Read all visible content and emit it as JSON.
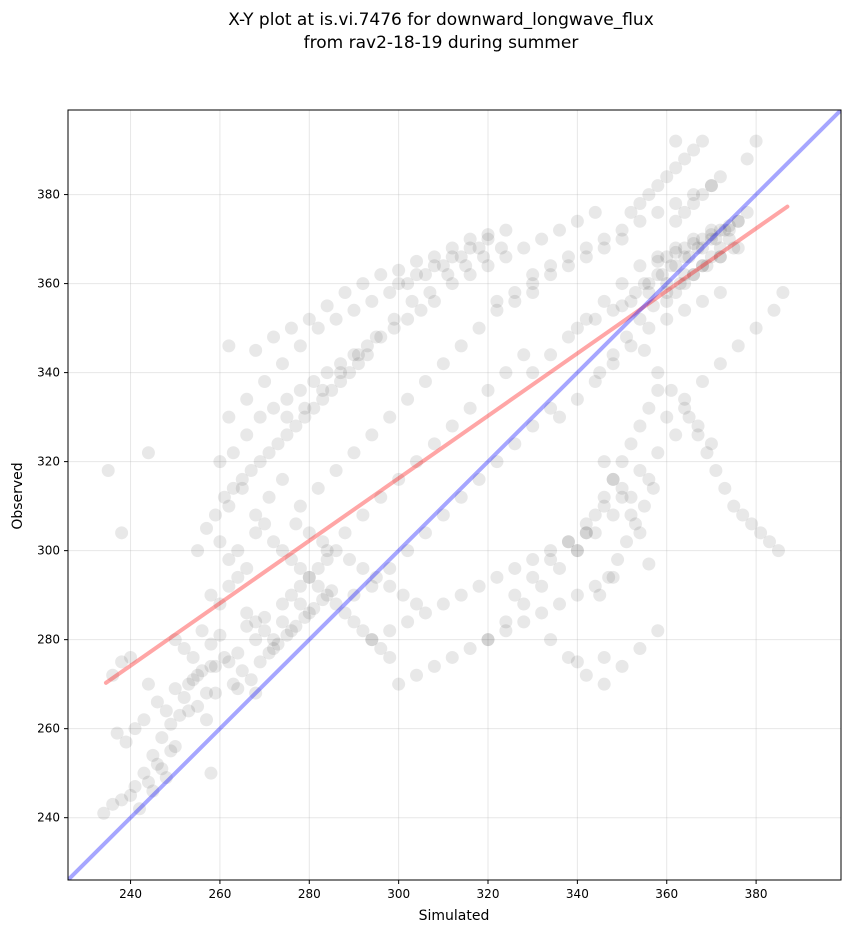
{
  "chart_data": {
    "type": "scatter",
    "title": "X-Y plot at is.vi.7476 for downward_longwave_flux",
    "subtitle": "from rav2-18-19 during summer",
    "xlabel": "Simulated",
    "ylabel": "Observed",
    "xlim": [
      226,
      399
    ],
    "ylim": [
      226,
      399
    ],
    "xticks": [
      240,
      260,
      280,
      300,
      320,
      340,
      360,
      380
    ],
    "yticks": [
      240,
      260,
      280,
      300,
      320,
      340,
      360,
      380
    ],
    "grid": true,
    "colors": {
      "points": "#000000",
      "regression_line": "#ff0000",
      "identity_line": "#0000ff"
    },
    "series": [
      {
        "x": [
          234,
          236,
          238,
          240,
          241,
          242,
          243,
          244,
          245,
          246,
          247,
          248,
          249,
          250,
          237,
          239,
          241,
          243,
          245,
          247,
          249,
          251,
          253,
          255,
          257,
          259,
          236,
          238,
          240,
          244,
          246,
          248,
          250,
          252,
          254,
          256,
          258,
          250,
          252,
          254,
          256,
          258,
          260,
          262,
          264,
          266,
          268,
          270,
          272,
          274,
          276,
          278,
          280,
          253,
          255,
          257,
          259,
          261,
          263,
          265,
          267,
          269,
          271,
          273,
          275,
          277,
          279,
          281,
          283,
          285,
          258,
          260,
          262,
          264,
          266,
          268,
          270,
          272,
          274,
          276,
          278,
          280,
          282,
          284,
          260,
          262,
          264,
          266,
          268,
          270,
          272,
          274,
          276,
          278,
          280,
          282,
          284,
          286,
          288,
          290,
          292,
          294,
          296,
          298,
          262,
          265,
          268,
          271,
          274,
          277,
          280,
          283,
          286,
          289,
          292,
          295,
          298,
          301,
          304,
          255,
          257,
          259,
          261,
          263,
          265,
          267,
          269,
          271,
          273,
          275,
          277,
          279,
          281,
          283,
          285,
          287,
          289,
          291,
          293,
          260,
          263,
          266,
          269,
          272,
          275,
          278,
          281,
          284,
          287,
          290,
          293,
          296,
          299,
          302,
          305,
          308,
          262,
          266,
          270,
          274,
          278,
          282,
          286,
          290,
          294,
          298,
          302,
          306,
          310,
          314,
          318,
          268,
          272,
          276,
          280,
          284,
          288,
          292,
          296,
          300,
          304,
          308,
          312,
          316,
          320,
          275,
          279,
          283,
          287,
          291,
          295,
          299,
          303,
          307,
          311,
          315,
          319,
          323,
          278,
          282,
          286,
          290,
          294,
          298,
          302,
          306,
          310,
          314,
          318,
          322,
          326,
          330,
          284,
          288,
          292,
          296,
          300,
          304,
          308,
          312,
          316,
          320,
          324,
          328,
          290,
          294,
          298,
          302,
          306,
          310,
          314,
          318,
          322,
          326,
          330,
          334,
          294,
          298,
          302,
          306,
          310,
          314,
          318,
          322,
          326,
          330,
          334,
          338,
          342,
          300,
          304,
          308,
          312,
          316,
          320,
          324,
          328,
          332,
          336,
          340,
          344,
          348,
          320,
          324,
          328,
          332,
          336,
          340,
          344,
          348,
          352,
          356,
          326,
          330,
          334,
          338,
          342,
          346,
          350,
          354,
          358,
          362,
          330,
          334,
          338,
          342,
          346,
          350,
          354,
          358,
          362,
          366,
          370,
          336,
          340,
          344,
          348,
          352,
          356,
          360,
          364,
          368,
          372,
          340,
          344,
          348,
          352,
          356,
          360,
          364,
          368,
          372,
          376,
          345,
          348,
          351,
          354,
          357,
          360,
          363,
          366,
          369,
          372,
          375,
          350,
          353,
          356,
          359,
          362,
          365,
          368,
          371,
          374,
          355,
          358,
          361,
          364,
          367,
          370,
          373,
          376,
          358,
          360,
          362,
          364,
          366,
          368,
          370,
          372,
          374,
          376,
          378,
          360,
          362,
          364,
          366,
          368,
          370,
          372,
          374,
          362,
          364,
          366,
          368,
          370,
          372,
          340,
          342,
          344,
          346,
          348,
          350,
          352,
          354,
          356,
          358,
          345,
          347,
          349,
          351,
          353,
          355,
          357,
          330,
          334,
          338,
          342,
          346,
          350,
          354,
          358,
          362,
          366,
          370,
          322,
          326,
          330,
          334,
          338,
          342,
          346,
          350,
          312,
          316,
          320,
          324,
          328,
          332,
          336,
          340,
          344,
          300,
          304,
          308,
          312,
          316,
          320,
          324,
          365,
          367,
          369,
          371,
          373,
          375,
          377,
          379,
          381,
          383,
          385,
          355,
          358,
          361,
          364,
          367,
          370,
          346,
          348,
          350,
          352,
          354,
          352,
          354,
          356,
          358,
          360,
          362,
          364,
          366,
          368,
          334,
          338,
          342,
          346,
          350,
          354,
          358,
          360,
          364,
          368,
          372,
          376,
          380,
          384,
          386,
          235,
          238,
          244,
          258,
          262,
          264,
          268,
          340,
          346,
          356,
          362,
          378,
          380
        ],
        "y": [
          241,
          243,
          244,
          245,
          247,
          242,
          250,
          248,
          246,
          252,
          251,
          249,
          255,
          256,
          259,
          257,
          260,
          262,
          254,
          258,
          261,
          263,
          264,
          265,
          262,
          268,
          272,
          275,
          276,
          270,
          266,
          264,
          269,
          267,
          271,
          273,
          274,
          280,
          278,
          276,
          282,
          279,
          281,
          275,
          277,
          283,
          280,
          285,
          278,
          284,
          282,
          288,
          286,
          270,
          272,
          268,
          274,
          276,
          270,
          273,
          271,
          275,
          277,
          279,
          281,
          283,
          285,
          287,
          289,
          291,
          290,
          288,
          292,
          294,
          286,
          284,
          282,
          280,
          288,
          290,
          292,
          294,
          296,
          298,
          302,
          298,
          300,
          296,
          304,
          306,
          302,
          300,
          298,
          296,
          294,
          292,
          290,
          288,
          286,
          284,
          282,
          280,
          278,
          276,
          310,
          314,
          308,
          312,
          316,
          306,
          304,
          302,
          300,
          298,
          296,
          294,
          292,
          290,
          288,
          300,
          305,
          308,
          312,
          314,
          316,
          318,
          320,
          322,
          324,
          326,
          328,
          330,
          332,
          334,
          336,
          338,
          340,
          342,
          344,
          320,
          322,
          326,
          330,
          332,
          334,
          336,
          338,
          340,
          342,
          344,
          346,
          348,
          350,
          352,
          354,
          356,
          330,
          334,
          338,
          342,
          346,
          350,
          352,
          354,
          356,
          358,
          360,
          362,
          364,
          366,
          368,
          345,
          348,
          350,
          352,
          355,
          358,
          360,
          362,
          363,
          365,
          366,
          368,
          370,
          371,
          330,
          332,
          336,
          340,
          344,
          348,
          352,
          356,
          358,
          362,
          364,
          366,
          368,
          310,
          314,
          318,
          322,
          326,
          330,
          334,
          338,
          342,
          346,
          350,
          354,
          356,
          358,
          300,
          304,
          308,
          312,
          316,
          320,
          324,
          328,
          332,
          336,
          340,
          344,
          290,
          292,
          296,
          300,
          304,
          308,
          312,
          316,
          320,
          324,
          328,
          332,
          280,
          282,
          284,
          286,
          288,
          290,
          292,
          294,
          296,
          298,
          300,
          302,
          304,
          270,
          272,
          274,
          276,
          278,
          280,
          282,
          284,
          286,
          288,
          290,
          292,
          294,
          280,
          284,
          288,
          292,
          296,
          300,
          304,
          308,
          312,
          316,
          290,
          294,
          298,
          302,
          306,
          310,
          314,
          318,
          322,
          326,
          340,
          344,
          348,
          352,
          356,
          360,
          364,
          366,
          368,
          370,
          372,
          330,
          334,
          338,
          342,
          346,
          350,
          352,
          354,
          356,
          358,
          350,
          352,
          354,
          356,
          358,
          360,
          362,
          364,
          366,
          368,
          340,
          344,
          348,
          352,
          355,
          358,
          360,
          362,
          364,
          366,
          368,
          355,
          358,
          360,
          362,
          364,
          366,
          368,
          370,
          372,
          360,
          362,
          364,
          366,
          368,
          370,
          372,
          374,
          365,
          366,
          367,
          368,
          369,
          370,
          371,
          372,
          373,
          374,
          376,
          356,
          358,
          360,
          362,
          364,
          366,
          368,
          370,
          374,
          376,
          378,
          380,
          382,
          384,
          300,
          304,
          308,
          312,
          316,
          320,
          324,
          328,
          332,
          336,
          290,
          294,
          298,
          302,
          306,
          310,
          314,
          362,
          364,
          366,
          368,
          370,
          372,
          374,
          376,
          378,
          380,
          382,
          356,
          358,
          360,
          362,
          364,
          366,
          368,
          370,
          360,
          362,
          364,
          366,
          368,
          370,
          372,
          374,
          376,
          360,
          362,
          364,
          366,
          368,
          370,
          372,
          330,
          326,
          322,
          318,
          314,
          310,
          308,
          306,
          304,
          302,
          300,
          345,
          340,
          336,
          332,
          328,
          324,
          320,
          316,
          312,
          308,
          304,
          376,
          378,
          380,
          382,
          384,
          386,
          388,
          390,
          392,
          280,
          276,
          272,
          270,
          274,
          278,
          282,
          330,
          334,
          338,
          342,
          346,
          350,
          354,
          358,
          318,
          304,
          322,
          250,
          346,
          269,
          268,
          275,
          276,
          297,
          392,
          388,
          392
        ]
      }
    ],
    "lines": [
      {
        "kind": "regression",
        "x": [
          234.5,
          387
        ],
        "y": [
          270.3,
          377.3
        ]
      },
      {
        "kind": "identity",
        "x": [
          226,
          399
        ],
        "y": [
          226,
          399
        ]
      }
    ]
  }
}
